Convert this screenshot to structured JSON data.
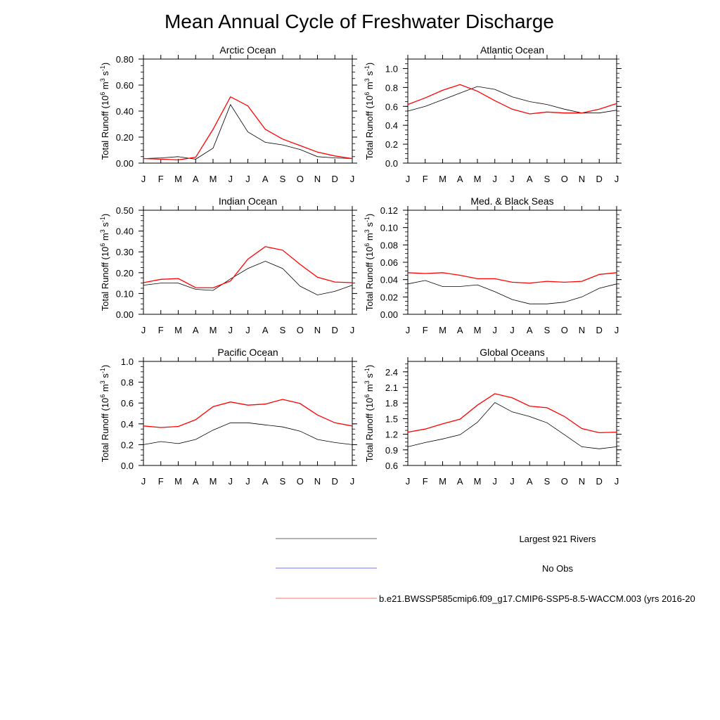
{
  "page_title": "Mean Annual Cycle of Freshwater Discharge",
  "y_label": {
    "base": "Total Runoff (10",
    "exp1": "6",
    "mid": " m",
    "exp2": "3",
    "mid2": " s",
    "exp3": "-1",
    "end": ")"
  },
  "months": [
    "J",
    "F",
    "M",
    "A",
    "M",
    "J",
    "J",
    "A",
    "S",
    "O",
    "N",
    "D",
    "J"
  ],
  "colors": {
    "rivers": "#000000",
    "noobs": "#0000ff",
    "model": "#ff0000"
  },
  "legend": [
    {
      "label": "Largest 921 Rivers",
      "color": "#000000"
    },
    {
      "label": "No Obs",
      "color": "#0000ff"
    },
    {
      "label": "b.e21.BWSSP585cmip6.f09_g17.CMIP6-SSP5-8.5-WACCM.003 (yrs 2016-20",
      "color": "#ff0000"
    }
  ],
  "chart_data": [
    {
      "type": "line",
      "title": "Arctic Ocean",
      "ylabel": "Total Runoff (10^6 m^3 s^-1)",
      "categories": [
        "J",
        "F",
        "M",
        "A",
        "M",
        "J",
        "J",
        "A",
        "S",
        "O",
        "N",
        "D",
        "J"
      ],
      "ylim": [
        0,
        0.8
      ],
      "yticks": [
        "0.00",
        "0.20",
        "0.40",
        "0.60",
        "0.80"
      ],
      "series": [
        {
          "name": "Largest 921 Rivers",
          "values": [
            0.035,
            0.04,
            0.05,
            0.03,
            0.115,
            0.45,
            0.24,
            0.16,
            0.14,
            0.105,
            0.05,
            0.04,
            0.035
          ]
        },
        {
          "name": "b.e21.BWSSP585cmip6.f09_g17.CMIP6-SSP5-8.5-WACCM.003",
          "values": [
            0.035,
            0.03,
            0.025,
            0.045,
            0.26,
            0.51,
            0.44,
            0.26,
            0.185,
            0.135,
            0.085,
            0.055,
            0.035
          ]
        }
      ]
    },
    {
      "type": "line",
      "title": "Atlantic Ocean",
      "ylabel": "Total Runoff (10^6 m^3 s^-1)",
      "categories": [
        "J",
        "F",
        "M",
        "A",
        "M",
        "J",
        "J",
        "A",
        "S",
        "O",
        "N",
        "D",
        "J"
      ],
      "ylim": [
        0,
        1.1
      ],
      "yticks": [
        "0.0",
        "0.2",
        "0.4",
        "0.6",
        "0.8",
        "1.0"
      ],
      "series": [
        {
          "name": "Largest 921 Rivers",
          "values": [
            0.55,
            0.6,
            0.67,
            0.74,
            0.81,
            0.78,
            0.7,
            0.65,
            0.62,
            0.57,
            0.53,
            0.53,
            0.56
          ]
        },
        {
          "name": "b.e21.BWSSP585cmip6.f09_g17.CMIP6-SSP5-8.5-WACCM.003",
          "values": [
            0.62,
            0.69,
            0.77,
            0.83,
            0.76,
            0.66,
            0.57,
            0.52,
            0.54,
            0.53,
            0.53,
            0.57,
            0.63
          ]
        }
      ]
    },
    {
      "type": "line",
      "title": "Indian Ocean",
      "ylabel": "Total Runoff (10^6 m^3 s^-1)",
      "categories": [
        "J",
        "F",
        "M",
        "A",
        "M",
        "J",
        "J",
        "A",
        "S",
        "O",
        "N",
        "D",
        "J"
      ],
      "ylim": [
        0,
        0.5
      ],
      "yticks": [
        "0.00",
        "0.10",
        "0.20",
        "0.30",
        "0.40",
        "0.50"
      ],
      "series": [
        {
          "name": "Largest 921 Rivers",
          "values": [
            0.14,
            0.15,
            0.15,
            0.12,
            0.115,
            0.17,
            0.22,
            0.255,
            0.22,
            0.135,
            0.093,
            0.11,
            0.14
          ]
        },
        {
          "name": "b.e21.BWSSP585cmip6.f09_g17.CMIP6-SSP5-8.5-WACCM.003",
          "values": [
            0.152,
            0.168,
            0.172,
            0.128,
            0.127,
            0.16,
            0.265,
            0.325,
            0.308,
            0.24,
            0.178,
            0.155,
            0.152
          ]
        }
      ]
    },
    {
      "type": "line",
      "title": "Med. & Black Seas",
      "ylabel": "Total Runoff (10^6 m^3 s^-1)",
      "categories": [
        "J",
        "F",
        "M",
        "A",
        "M",
        "J",
        "J",
        "A",
        "S",
        "O",
        "N",
        "D",
        "J"
      ],
      "ylim": [
        0,
        0.12
      ],
      "yticks": [
        "0.00",
        "0.02",
        "0.04",
        "0.06",
        "0.08",
        "0.10",
        "0.12"
      ],
      "series": [
        {
          "name": "Largest 921 Rivers",
          "values": [
            0.035,
            0.039,
            0.032,
            0.032,
            0.034,
            0.026,
            0.017,
            0.012,
            0.012,
            0.014,
            0.02,
            0.03,
            0.035
          ]
        },
        {
          "name": "b.e21.BWSSP585cmip6.f09_g17.CMIP6-SSP5-8.5-WACCM.003",
          "values": [
            0.048,
            0.047,
            0.048,
            0.045,
            0.041,
            0.041,
            0.037,
            0.036,
            0.038,
            0.037,
            0.038,
            0.046,
            0.048
          ]
        }
      ]
    },
    {
      "type": "line",
      "title": "Pacific Ocean",
      "ylabel": "Total Runoff (10^6 m^3 s^-1)",
      "categories": [
        "J",
        "F",
        "M",
        "A",
        "M",
        "J",
        "J",
        "A",
        "S",
        "O",
        "N",
        "D",
        "J"
      ],
      "ylim": [
        0,
        1.0
      ],
      "yticks": [
        "0.0",
        "0.2",
        "0.4",
        "0.6",
        "0.8",
        "1.0"
      ],
      "series": [
        {
          "name": "Largest 921 Rivers",
          "values": [
            0.2,
            0.23,
            0.21,
            0.25,
            0.34,
            0.41,
            0.41,
            0.39,
            0.37,
            0.33,
            0.25,
            0.22,
            0.2
          ]
        },
        {
          "name": "b.e21.BWSSP585cmip6.f09_g17.CMIP6-SSP5-8.5-WACCM.003",
          "values": [
            0.38,
            0.365,
            0.375,
            0.44,
            0.565,
            0.61,
            0.58,
            0.59,
            0.635,
            0.595,
            0.485,
            0.41,
            0.38
          ]
        }
      ]
    },
    {
      "type": "line",
      "title": "Global Oceans",
      "ylabel": "Total Runoff (10^6 m^3 s^-1)",
      "categories": [
        "J",
        "F",
        "M",
        "A",
        "M",
        "J",
        "J",
        "A",
        "S",
        "O",
        "N",
        "D",
        "J"
      ],
      "ylim": [
        0.6,
        2.6
      ],
      "yticks": [
        "0.6",
        "0.9",
        "1.2",
        "1.5",
        "1.8",
        "2.1",
        "2.4"
      ],
      "series": [
        {
          "name": "Largest 921 Rivers",
          "values": [
            0.96,
            1.04,
            1.11,
            1.19,
            1.43,
            1.81,
            1.63,
            1.54,
            1.42,
            1.19,
            0.96,
            0.92,
            0.96
          ]
        },
        {
          "name": "b.e21.BWSSP585cmip6.f09_g17.CMIP6-SSP5-8.5-WACCM.003",
          "values": [
            1.24,
            1.3,
            1.4,
            1.49,
            1.76,
            1.98,
            1.9,
            1.74,
            1.71,
            1.54,
            1.31,
            1.23,
            1.24
          ]
        }
      ]
    }
  ]
}
